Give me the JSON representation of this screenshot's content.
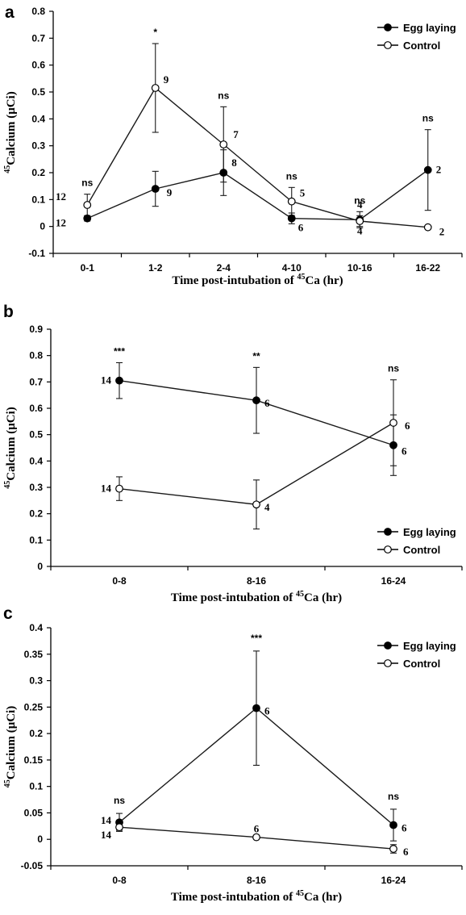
{
  "chart_data": [
    {
      "panel": "a",
      "type": "line",
      "categories": [
        "0-1",
        "1-2",
        "2-4",
        "4-10",
        "10-16",
        "16-22"
      ],
      "ylim": [
        -0.1,
        0.8
      ],
      "yticks": [
        "-0.1",
        "0",
        "0.1",
        "0.2",
        "0.3",
        "0.4",
        "0.5",
        "0.6",
        "0.7",
        "0.8"
      ],
      "ylabel": "Calcium (μCi)",
      "ylabel_sup": "45",
      "xlabel": "Time post-intubation of ",
      "xlabel_sup": "45",
      "xlabel_tail": "Ca (hr)",
      "legend_position": "top-right",
      "series": [
        {
          "name": "Egg laying",
          "marker": "filled",
          "values": [
            0.03,
            0.14,
            0.2,
            0.03,
            0.025,
            0.21
          ],
          "errors": [
            0.01,
            0.065,
            0.085,
            0.02,
            0.03,
            0.15
          ],
          "n": [
            "12",
            "9",
            "8",
            "6",
            "4",
            "2"
          ]
        },
        {
          "name": "Control",
          "marker": "open",
          "values": [
            0.08,
            0.515,
            0.305,
            0.093,
            0.02,
            -0.003
          ],
          "errors": [
            0.04,
            0.165,
            0.14,
            0.052,
            0.02,
            0
          ],
          "n": [
            "12",
            "9",
            "7",
            "5",
            "4",
            "2"
          ]
        }
      ],
      "significance": [
        "ns",
        "*",
        "ns",
        "ns",
        "ns",
        "ns"
      ]
    },
    {
      "panel": "b",
      "type": "line",
      "categories": [
        "0-8",
        "8-16",
        "16-24"
      ],
      "ylim": [
        0,
        0.9
      ],
      "yticks": [
        "0",
        "0.1",
        "0.2",
        "0.3",
        "0.4",
        "0.5",
        "0.6",
        "0.7",
        "0.8",
        "0.9"
      ],
      "ylabel": "Calcium (μCi)",
      "ylabel_sup": "45",
      "xlabel": "Time post-intubation of ",
      "xlabel_sup": "45",
      "xlabel_tail": "Ca (hr)",
      "legend_position": "bottom-right",
      "series": [
        {
          "name": "Egg laying",
          "marker": "filled",
          "values": [
            0.705,
            0.63,
            0.46
          ],
          "errors": [
            0.068,
            0.125,
            0.115
          ],
          "n": [
            "14",
            "6",
            "6"
          ]
        },
        {
          "name": "Control",
          "marker": "open",
          "values": [
            0.295,
            0.235,
            0.545
          ],
          "errors": [
            0.045,
            0.093,
            0.163
          ],
          "n": [
            "14",
            "4",
            "6"
          ]
        }
      ],
      "significance": [
        "***",
        "**",
        "ns"
      ]
    },
    {
      "panel": "c",
      "type": "line",
      "categories": [
        "0-8",
        "8-16",
        "16-24"
      ],
      "ylim": [
        -0.05,
        0.4
      ],
      "yticks": [
        "-0.05",
        "0",
        "0.05",
        "0.1",
        "0.15",
        "0.2",
        "0.25",
        "0.3",
        "0.35",
        "0.4"
      ],
      "ylabel": "Calcium (μCi)",
      "ylabel_sup": "45",
      "xlabel": "Time post-intubation of ",
      "xlabel_sup": "45",
      "xlabel_tail": "Ca (hr)",
      "legend_position": "top-right",
      "series": [
        {
          "name": "Egg laying",
          "marker": "filled",
          "values": [
            0.032,
            0.248,
            0.027
          ],
          "errors": [
            0.017,
            0.108,
            0.03
          ],
          "n": [
            "14",
            "6",
            "6"
          ]
        },
        {
          "name": "Control",
          "marker": "open",
          "values": [
            0.023,
            0.004,
            -0.018
          ],
          "errors": [
            0.006,
            0,
            0.008
          ],
          "n": [
            "14",
            "6",
            "6"
          ]
        }
      ],
      "significance": [
        "ns",
        "***",
        "ns"
      ]
    }
  ],
  "colors": {
    "axis": "#000000",
    "line": "#1a1a1a",
    "filled_marker": "#000000",
    "open_marker": "#ffffff"
  }
}
